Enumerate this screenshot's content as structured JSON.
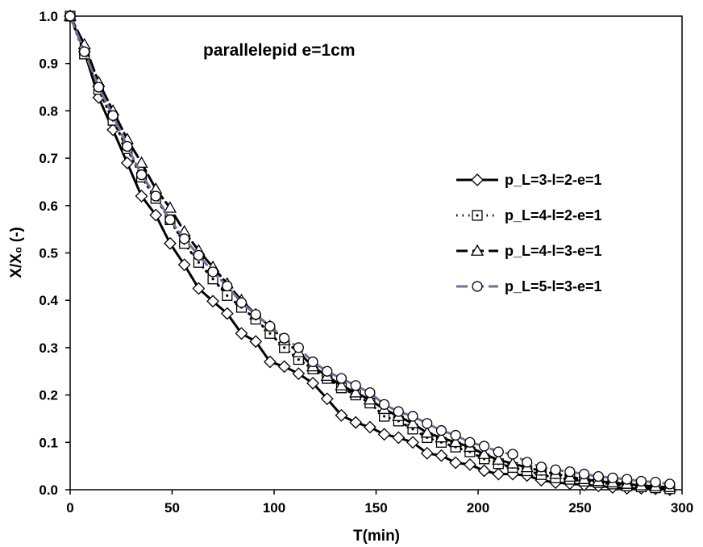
{
  "chart_data": {
    "type": "line",
    "title": "",
    "annotation": "parallelepid e=1cm",
    "xlabel": "T(min)",
    "ylabel": "X/X₀ (-)",
    "xlim": [
      0,
      300
    ],
    "ylim": [
      0,
      1.0
    ],
    "xticks": [
      0,
      50,
      100,
      150,
      200,
      250,
      300
    ],
    "xtick_labels": [
      "0",
      "50",
      "100",
      "150",
      "200",
      "250",
      "300"
    ],
    "yticks": [
      0,
      0.1,
      0.2,
      0.3,
      0.4,
      0.5,
      0.6,
      0.7,
      0.8,
      0.9,
      1.0
    ],
    "ytick_labels": [
      "0.0",
      "0.1",
      "0.2",
      "0.3",
      "0.4",
      "0.5",
      "0.6",
      "0.7",
      "0.8",
      "0.9",
      "1.0"
    ],
    "grid": false,
    "legend_position": "right",
    "series": [
      {
        "name": "p_L=3-l=2-e=1",
        "line_style": "solid",
        "marker": "diamond",
        "color": "#000000",
        "x": [
          0,
          7,
          14,
          21,
          28,
          35,
          42,
          49,
          56,
          63,
          70,
          77,
          84,
          91,
          98,
          105,
          112,
          119,
          126,
          133,
          140,
          147,
          154,
          161,
          168,
          175,
          182,
          189,
          196,
          203,
          210,
          217,
          224,
          231,
          238,
          245,
          252,
          259,
          266,
          273,
          280,
          287,
          294
        ],
        "y": [
          1.0,
          0.925,
          0.828,
          0.76,
          0.69,
          0.62,
          0.58,
          0.52,
          0.475,
          0.425,
          0.398,
          0.372,
          0.33,
          0.313,
          0.27,
          0.26,
          0.245,
          0.225,
          0.192,
          0.157,
          0.142,
          0.132,
          0.117,
          0.11,
          0.1,
          0.077,
          0.072,
          0.057,
          0.053,
          0.04,
          0.033,
          0.033,
          0.03,
          0.02,
          0.015,
          0.013,
          0.01,
          0.008,
          0.005,
          0.003,
          0.003,
          0.002,
          0.0
        ]
      },
      {
        "name": "p_L=4-l=2-e=1",
        "line_style": "dotted",
        "marker": "square-dot",
        "color": "#000000",
        "x": [
          0,
          7,
          14,
          21,
          28,
          35,
          42,
          49,
          56,
          63,
          70,
          77,
          84,
          91,
          98,
          105,
          112,
          119,
          126,
          133,
          140,
          147,
          154,
          161,
          168,
          175,
          182,
          189,
          196,
          203,
          210,
          217,
          224,
          231,
          238,
          245,
          252,
          259,
          266,
          273,
          280,
          287,
          294
        ],
        "y": [
          1.0,
          0.92,
          0.845,
          0.78,
          0.72,
          0.66,
          0.615,
          0.57,
          0.52,
          0.48,
          0.445,
          0.41,
          0.385,
          0.36,
          0.33,
          0.3,
          0.275,
          0.255,
          0.235,
          0.215,
          0.2,
          0.183,
          0.155,
          0.145,
          0.128,
          0.11,
          0.1,
          0.09,
          0.08,
          0.065,
          0.055,
          0.047,
          0.04,
          0.032,
          0.025,
          0.022,
          0.018,
          0.015,
          0.012,
          0.008,
          0.006,
          0.004,
          0.002
        ]
      },
      {
        "name": "p_L=4-l=3-e=1",
        "line_style": "dashed",
        "marker": "triangle",
        "color": "#000000",
        "x": [
          0,
          7,
          14,
          21,
          28,
          35,
          42,
          49,
          56,
          63,
          70,
          77,
          84,
          91,
          98,
          105,
          112,
          119,
          126,
          133,
          140,
          147,
          154,
          161,
          168,
          175,
          182,
          189,
          196,
          203,
          210,
          217,
          224,
          231,
          238,
          245,
          252,
          259,
          266,
          273,
          280,
          287,
          294
        ],
        "y": [
          1.0,
          0.94,
          0.86,
          0.8,
          0.74,
          0.69,
          0.635,
          0.595,
          0.545,
          0.505,
          0.47,
          0.435,
          0.4,
          0.37,
          0.345,
          0.315,
          0.29,
          0.26,
          0.24,
          0.22,
          0.205,
          0.19,
          0.17,
          0.155,
          0.14,
          0.12,
          0.11,
          0.1,
          0.09,
          0.075,
          0.063,
          0.055,
          0.047,
          0.04,
          0.033,
          0.027,
          0.022,
          0.018,
          0.015,
          0.012,
          0.009,
          0.007,
          0.005
        ]
      },
      {
        "name": "p_L=5-l=3-e=1",
        "line_style": "dashed",
        "marker": "circle",
        "color": "#7a6b9a",
        "x": [
          0,
          7,
          14,
          21,
          28,
          35,
          42,
          49,
          56,
          63,
          70,
          77,
          84,
          91,
          98,
          105,
          112,
          119,
          126,
          133,
          140,
          147,
          154,
          161,
          168,
          175,
          182,
          189,
          196,
          203,
          210,
          217,
          224,
          231,
          238,
          245,
          252,
          259,
          266,
          273,
          280,
          287,
          294
        ],
        "y": [
          1.0,
          0.925,
          0.85,
          0.79,
          0.725,
          0.665,
          0.62,
          0.57,
          0.53,
          0.495,
          0.46,
          0.43,
          0.395,
          0.37,
          0.345,
          0.32,
          0.3,
          0.27,
          0.25,
          0.235,
          0.22,
          0.205,
          0.18,
          0.165,
          0.155,
          0.14,
          0.125,
          0.115,
          0.1,
          0.092,
          0.08,
          0.075,
          0.058,
          0.048,
          0.042,
          0.038,
          0.033,
          0.028,
          0.025,
          0.022,
          0.018,
          0.016,
          0.012
        ]
      }
    ]
  }
}
